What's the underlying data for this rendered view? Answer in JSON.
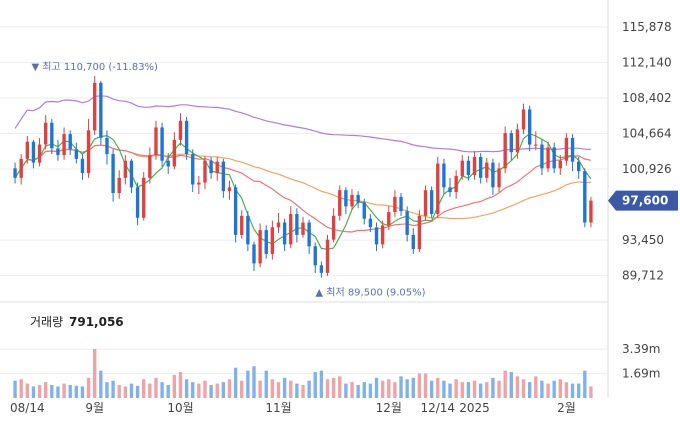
{
  "chart_data": {
    "type": "candlestick",
    "price_axis": {
      "ticks": [
        "115,878",
        "112,140",
        "108,402",
        "104,664",
        "100,926",
        "93,450",
        "89,712"
      ],
      "tick_values": [
        115878,
        112140,
        108402,
        104664,
        100926,
        93450,
        89712
      ],
      "ylim": [
        88200,
        118500
      ]
    },
    "current_price": {
      "label": "97,600",
      "value": 97600,
      "color": "#3a5aa8"
    },
    "annotations": {
      "high": {
        "text": "▼ 최고 110,700 (-11.83%)",
        "value": 110700
      },
      "low": {
        "text": "▲ 최저 89,500 (9.05%)",
        "value": 89500
      }
    },
    "x_axis": {
      "labels": [
        "08/14",
        "9월",
        "10월",
        "11월",
        "12월",
        "12/14",
        "2025",
        "2월"
      ],
      "label_index": [
        2,
        13,
        27,
        43,
        61,
        69,
        75,
        90
      ]
    },
    "candles": [
      [
        101000,
        100000,
        101600,
        99400
      ],
      [
        100000,
        102000,
        102500,
        99300
      ],
      [
        102000,
        103800,
        104400,
        101500
      ],
      [
        103800,
        101600,
        104000,
        101000
      ],
      [
        101600,
        103500,
        104200,
        101200
      ],
      [
        103500,
        105800,
        106600,
        103000
      ],
      [
        105800,
        103100,
        106200,
        102500
      ],
      [
        103100,
        102400,
        104000,
        101800
      ],
      [
        102400,
        104600,
        105300,
        101900
      ],
      [
        104600,
        103000,
        105000,
        102400
      ],
      [
        103000,
        102000,
        103700,
        101500
      ],
      [
        102000,
        100500,
        102500,
        99800
      ],
      [
        100500,
        105000,
        106200,
        100000
      ],
      [
        105000,
        110000,
        110700,
        104500
      ],
      [
        110000,
        104200,
        110200,
        103500
      ],
      [
        104200,
        102500,
        105000,
        101400
      ],
      [
        102500,
        98400,
        103000,
        97500
      ],
      [
        98400,
        100000,
        100800,
        97800
      ],
      [
        100000,
        101800,
        102400,
        99300
      ],
      [
        101800,
        99000,
        102000,
        98400
      ],
      [
        99000,
        95800,
        99500,
        95000
      ],
      [
        95800,
        100000,
        100600,
        95500
      ],
      [
        100000,
        102400,
        103200,
        99400
      ],
      [
        102400,
        105300,
        106000,
        101900
      ],
      [
        105300,
        101800,
        105800,
        101200
      ],
      [
        101800,
        101200,
        102600,
        100400
      ],
      [
        101200,
        104000,
        104800,
        100900
      ],
      [
        104000,
        106000,
        106800,
        103400
      ],
      [
        106000,
        102500,
        106400,
        101900
      ],
      [
        102500,
        99300,
        103000,
        98500
      ],
      [
        99300,
        99500,
        100200,
        98300
      ],
      [
        99500,
        101800,
        102300,
        98800
      ],
      [
        101800,
        100500,
        102200,
        99900
      ],
      [
        100500,
        101700,
        102200,
        99700
      ],
      [
        101700,
        98600,
        102000,
        97900
      ],
      [
        98600,
        99000,
        99700,
        97700
      ],
      [
        99000,
        94000,
        99300,
        93200
      ],
      [
        94000,
        96000,
        96600,
        93600
      ],
      [
        96000,
        93000,
        96500,
        92300
      ],
      [
        93000,
        91000,
        93300,
        90200
      ],
      [
        91000,
        94500,
        95200,
        90600
      ],
      [
        94500,
        92000,
        95000,
        91500
      ],
      [
        92000,
        94800,
        95500,
        91400
      ],
      [
        94800,
        95300,
        96300,
        94200
      ],
      [
        95300,
        93000,
        95700,
        92300
      ],
      [
        93000,
        96200,
        97000,
        92600
      ],
      [
        96200,
        94000,
        96800,
        93200
      ],
      [
        94000,
        95300,
        95900,
        93700
      ],
      [
        95300,
        92800,
        95600,
        92000
      ],
      [
        92800,
        90800,
        93200,
        90000
      ],
      [
        90800,
        90000,
        91200,
        89500
      ],
      [
        90000,
        93500,
        94000,
        89700
      ],
      [
        93500,
        96000,
        96800,
        93200
      ],
      [
        96000,
        98700,
        99200,
        95500
      ],
      [
        98700,
        97000,
        99000,
        96200
      ],
      [
        97000,
        98200,
        98800,
        96600
      ],
      [
        98200,
        97400,
        98600,
        96800
      ],
      [
        97400,
        95700,
        97800,
        95100
      ],
      [
        95700,
        94800,
        96200,
        94300
      ],
      [
        94800,
        93000,
        95300,
        92300
      ],
      [
        93000,
        95000,
        95500,
        92600
      ],
      [
        95000,
        96400,
        97000,
        94500
      ],
      [
        96400,
        98000,
        98700,
        95900
      ],
      [
        98000,
        96500,
        98400,
        96000
      ],
      [
        96500,
        94000,
        97000,
        93300
      ],
      [
        94000,
        92500,
        94700,
        92000
      ],
      [
        92500,
        96000,
        96600,
        92200
      ],
      [
        96000,
        98700,
        99200,
        95500
      ],
      [
        98700,
        96200,
        99100,
        95800
      ],
      [
        96200,
        101500,
        102200,
        95800
      ],
      [
        101500,
        99000,
        102000,
        98300
      ],
      [
        99000,
        98500,
        100000,
        98000
      ],
      [
        98500,
        100200,
        100800,
        97800
      ],
      [
        100200,
        101800,
        102400,
        99800
      ],
      [
        101800,
        100300,
        102300,
        99700
      ],
      [
        100300,
        102200,
        102800,
        99800
      ],
      [
        102200,
        100000,
        102600,
        99400
      ],
      [
        100000,
        101600,
        102100,
        99500
      ],
      [
        101600,
        99000,
        102000,
        98200
      ],
      [
        99000,
        101000,
        101600,
        98500
      ],
      [
        101000,
        104700,
        105400,
        100500
      ],
      [
        104700,
        102700,
        105000,
        101900
      ],
      [
        102700,
        105100,
        105700,
        102000
      ],
      [
        105100,
        107200,
        107800,
        104600
      ],
      [
        107200,
        103500,
        107600,
        102800
      ],
      [
        103500,
        103500,
        104900,
        102900
      ],
      [
        103500,
        101000,
        104000,
        100300
      ],
      [
        101000,
        103200,
        103800,
        100600
      ],
      [
        103200,
        101000,
        103700,
        100500
      ],
      [
        101000,
        101800,
        102400,
        100300
      ],
      [
        101800,
        104200,
        104700,
        101300
      ],
      [
        104200,
        101700,
        104600,
        100700
      ],
      [
        101700,
        100700,
        102200,
        99900
      ],
      [
        100700,
        95300,
        101000,
        94800
      ],
      [
        95300,
        97600,
        98000,
        94800
      ]
    ],
    "volume_axis": {
      "label": "거래량",
      "value": "791,056",
      "ticks": [
        "3.39m",
        "1.69m"
      ],
      "tick_values": [
        3390000,
        1690000
      ],
      "ylim": [
        0,
        4300000
      ]
    },
    "volumes": [
      1200000,
      1300000,
      1000000,
      800000,
      900000,
      1100000,
      900000,
      800000,
      1000000,
      900000,
      850000,
      800000,
      1400000,
      3400000,
      1900000,
      1100000,
      1200000,
      900000,
      800000,
      1000000,
      850000,
      1300000,
      1000000,
      1400000,
      1100000,
      900000,
      1600000,
      1800000,
      1300000,
      1100000,
      1000000,
      1200000,
      900000,
      1000000,
      1100000,
      1300000,
      2100000,
      1200000,
      1900000,
      2200000,
      1200000,
      1900000,
      1300000,
      1100000,
      1400000,
      1200000,
      1000000,
      900000,
      1200000,
      1800000,
      1900000,
      1300000,
      1400000,
      1500000,
      1000000,
      1100000,
      900000,
      1100000,
      1000000,
      1400000,
      1200000,
      1300000,
      1100000,
      1500000,
      1300000,
      1400000,
      1700000,
      1700000,
      1200000,
      1400000,
      1200000,
      1000000,
      1300000,
      1100000,
      1100000,
      1200000,
      1000000,
      1100000,
      1400000,
      1200000,
      1900000,
      1800000,
      1500000,
      1300000,
      1100000,
      1500000,
      1200000,
      1000000,
      1200000,
      1300000,
      1100000,
      1000000,
      1000000,
      1900000,
      800000
    ],
    "colors": {
      "up": "#e0413f",
      "down": "#1f74d6",
      "vol_up": "#f0a2a5",
      "vol_down": "#7fb1ec",
      "ma5": "#4caf50",
      "ma20": "#f07478",
      "ma60": "#f4a45a",
      "ma120": "#b07ae6"
    }
  }
}
